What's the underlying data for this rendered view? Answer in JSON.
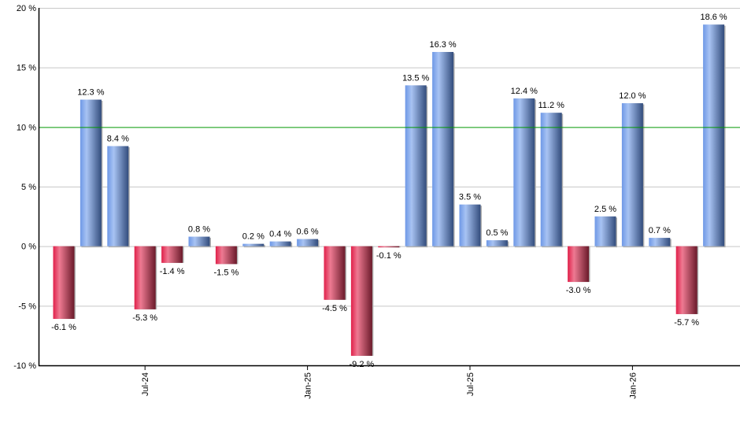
{
  "chart_data": {
    "type": "bar",
    "title": "",
    "xlabel": "",
    "ylabel": "",
    "ylim": [
      -10,
      20
    ],
    "y_ticks": [
      -10,
      -5,
      0,
      5,
      10,
      15,
      20
    ],
    "y_tick_labels": [
      "-10 %",
      "-5 %",
      "0 %",
      "5 %",
      "10 %",
      "15 %",
      "20 %"
    ],
    "reference_line": 10,
    "x_tick_labels": [
      {
        "bar_index": 3,
        "label": "Jul-24"
      },
      {
        "bar_index": 9,
        "label": "Jan-25"
      },
      {
        "bar_index": 15,
        "label": "Jul-25"
      },
      {
        "bar_index": 21,
        "label": "Jan-26"
      }
    ],
    "values": [
      -6.1,
      12.3,
      8.4,
      -5.3,
      -1.4,
      0.8,
      -1.5,
      0.2,
      0.4,
      0.6,
      -4.5,
      -9.2,
      -0.1,
      13.5,
      16.3,
      3.5,
      0.5,
      12.4,
      11.2,
      -3.0,
      2.5,
      12.0,
      0.7,
      -5.7,
      18.6
    ],
    "labels": [
      "-6.1 %",
      "12.3 %",
      "8.4 %",
      "-5.3 %",
      "-1.4 %",
      "0.8 %",
      "-1.5 %",
      "0.2 %",
      "0.4 %",
      "0.6 %",
      "-4.5 %",
      "-9.2 %",
      "-0.1 %",
      "13.5 %",
      "16.3 %",
      "3.5 %",
      "0.5 %",
      "12.4 %",
      "11.2 %",
      "-3.0 %",
      "2.5 %",
      "12.0 %",
      "0.7 %",
      "-5.7 %",
      "18.6 %"
    ],
    "grid": true,
    "colors": {
      "positive": "#6f93d6",
      "negative": "#d62a52",
      "reference": "#009900",
      "grid": "#c8c8c8"
    }
  }
}
